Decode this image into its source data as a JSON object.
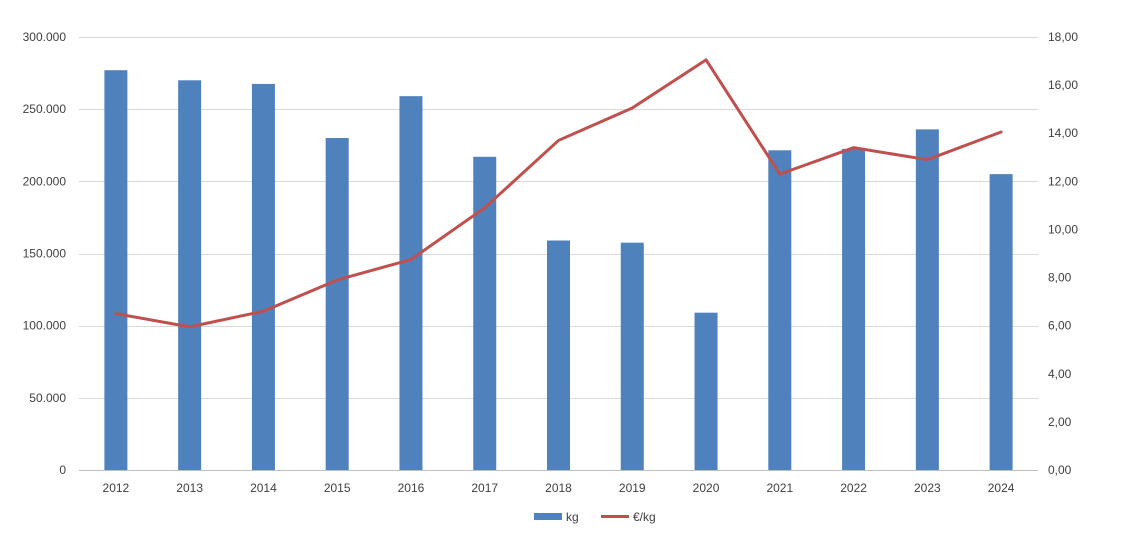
{
  "chart_data": {
    "type": "bar",
    "categories": [
      "2012",
      "2013",
      "2014",
      "2015",
      "2016",
      "2017",
      "2018",
      "2019",
      "2020",
      "2021",
      "2022",
      "2023",
      "2024"
    ],
    "series": [
      {
        "name": "kg",
        "type": "bar",
        "axis": "left",
        "color": "#4f81bd",
        "values": [
          277000,
          270000,
          267500,
          230000,
          259000,
          217000,
          159000,
          157500,
          109000,
          221500,
          222500,
          236000,
          205000
        ]
      },
      {
        "name": "€/kg",
        "type": "line",
        "axis": "right",
        "color": "#c0504d",
        "values": [
          6.5,
          5.95,
          6.6,
          7.9,
          8.75,
          10.9,
          13.7,
          15.05,
          17.05,
          12.3,
          13.4,
          12.9,
          14.05
        ]
      }
    ],
    "y_left": {
      "ylim": [
        0,
        300000
      ],
      "ticks": [
        0,
        50000,
        100000,
        150000,
        200000,
        250000,
        300000
      ],
      "tick_labels": [
        "0",
        "50.000",
        "100.000",
        "150.000",
        "200.000",
        "250.000",
        "300.000"
      ]
    },
    "y_right": {
      "ylim": [
        0,
        18
      ],
      "ticks": [
        0,
        2,
        4,
        6,
        8,
        10,
        12,
        14,
        16,
        18
      ],
      "tick_labels": [
        "0,00",
        "2,00",
        "4,00",
        "6,00",
        "8,00",
        "10,00",
        "12,00",
        "14,00",
        "16,00",
        "18,00"
      ]
    },
    "grid": true,
    "legend": "bottom",
    "colors": {
      "gridline": "#d9d9d9",
      "axis_text": "#404040"
    }
  }
}
